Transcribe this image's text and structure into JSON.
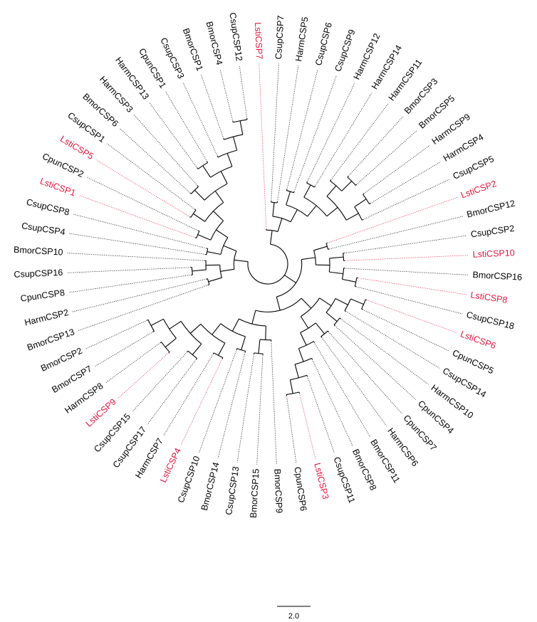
{
  "tree": {
    "highlight_color": "#e3173f",
    "text_color": "#000000",
    "branch_color": "#000000",
    "leaves": [
      {
        "name": "LstiCSP7",
        "hl": true
      },
      {
        "name": "CsupCSP7",
        "hl": false
      },
      {
        "name": "HarmCSP5",
        "hl": false
      },
      {
        "name": "CsupCSP6",
        "hl": false
      },
      {
        "name": "CsupCSP9",
        "hl": false
      },
      {
        "name": "HarmCSP12",
        "hl": false
      },
      {
        "name": "HarmCSP14",
        "hl": false
      },
      {
        "name": "HarmCSP11",
        "hl": false
      },
      {
        "name": "BmorCSP3",
        "hl": false
      },
      {
        "name": "BmorCSP5",
        "hl": false
      },
      {
        "name": "HarmCSP9",
        "hl": false
      },
      {
        "name": "HarmCSP4",
        "hl": false
      },
      {
        "name": "CsupCSP5",
        "hl": false
      },
      {
        "name": "LstiCSP2",
        "hl": true
      },
      {
        "name": "BmorCSP12",
        "hl": false
      },
      {
        "name": "CsupCSP2",
        "hl": false
      },
      {
        "name": "LstiCSP10",
        "hl": true
      },
      {
        "name": "BmorCSP16",
        "hl": false
      },
      {
        "name": "LstiCSP8",
        "hl": true
      },
      {
        "name": "CsupCSP18",
        "hl": false
      },
      {
        "name": "LstiCSP6",
        "hl": true
      },
      {
        "name": "CpunCSP5",
        "hl": false
      },
      {
        "name": "CsupCSP14",
        "hl": false
      },
      {
        "name": "HarmCSP10",
        "hl": false
      },
      {
        "name": "CpunCSP4",
        "hl": false
      },
      {
        "name": "CpunCSP7",
        "hl": false
      },
      {
        "name": "HarmCSP6",
        "hl": false
      },
      {
        "name": "BmorCSP11",
        "hl": false
      },
      {
        "name": "BmorCSP8",
        "hl": false
      },
      {
        "name": "CsupCSP11",
        "hl": false
      },
      {
        "name": "LstiCSP3",
        "hl": true
      },
      {
        "name": "CpunCSP6",
        "hl": false
      },
      {
        "name": "BmorCSP9",
        "hl": false
      },
      {
        "name": "BmorCSP15",
        "hl": false
      },
      {
        "name": "CsupCSP13",
        "hl": false
      },
      {
        "name": "BmorCSP14",
        "hl": false
      },
      {
        "name": "CsupCSP10",
        "hl": false
      },
      {
        "name": "LstiCSP4",
        "hl": true
      },
      {
        "name": "HarmCSP7",
        "hl": false
      },
      {
        "name": "CsupCSP17",
        "hl": false
      },
      {
        "name": "CsupCSP15",
        "hl": false
      },
      {
        "name": "LstiCSP9",
        "hl": true
      },
      {
        "name": "HarmCSP8",
        "hl": false
      },
      {
        "name": "BmorCSP7",
        "hl": false
      },
      {
        "name": "BmorCSP2",
        "hl": false
      },
      {
        "name": "BmorCSP13",
        "hl": false
      },
      {
        "name": "HarmCSP2",
        "hl": false
      },
      {
        "name": "CpunCSP8",
        "hl": false
      },
      {
        "name": "CsupCSP16",
        "hl": false
      },
      {
        "name": "BmorCSP10",
        "hl": false
      },
      {
        "name": "CsupCSP4",
        "hl": false
      },
      {
        "name": "CsupCSP8",
        "hl": false
      },
      {
        "name": "LstiCSP1",
        "hl": true
      },
      {
        "name": "CpunCSP2",
        "hl": false
      },
      {
        "name": "LstiCSP5",
        "hl": true
      },
      {
        "name": "CsupCSP1",
        "hl": false
      },
      {
        "name": "BmorCSP6",
        "hl": false
      },
      {
        "name": "HarmCSP3",
        "hl": false
      },
      {
        "name": "HarmCSP13",
        "hl": false
      },
      {
        "name": "CpunCSP1",
        "hl": false
      },
      {
        "name": "CsupCSP3",
        "hl": false
      },
      {
        "name": "BmorCSP1",
        "hl": false
      },
      {
        "name": "BmorCSP4",
        "hl": false
      },
      {
        "name": "CsupCSP12",
        "hl": false
      }
    ],
    "topology": [
      [
        "LstiCSP7",
        [
          [
            "CsupCSP7",
            "HarmCSP5"
          ],
          [
            [
              "CsupCSP6",
              "CsupCSP9"
            ],
            [
              [
                "HarmCSP12",
                "HarmCSP14"
              ],
              [
                [
                  "HarmCSP11",
                  [
                    "BmorCSP3",
                    "BmorCSP5"
                  ]
                ],
                [
                  [
                    "HarmCSP9",
                    "HarmCSP4"
                  ],
                  "CsupCSP5"
                ]
              ]
            ]
          ]
        ]
      ],
      [
        [
          [
            "LstiCSP2",
            "BmorCSP12"
          ],
          [
            [
              "CsupCSP2",
              "LstiCSP10"
            ],
            [
              "BmorCSP16",
              [
                "LstiCSP8",
                "CsupCSP18"
              ]
            ]
          ]
        ],
        [
          [
            [
              [
                [
                  "LstiCSP6",
                  "CpunCSP5"
                ],
                "CsupCSP14"
              ],
              [
                "HarmCSP10",
                "CpunCSP4"
              ]
            ],
            [
              [
                "CpunCSP7",
                "HarmCSP6"
              ],
              [
                "BmorCSP11",
                [
                  "BmorCSP8",
                  [
                    "CsupCSP11",
                    [
                      "LstiCSP3",
                      "CpunCSP6"
                    ]
                  ]
                ]
              ]
            ]
          ],
          [
            [
              "BmorCSP9",
              [
                "BmorCSP15",
                "CsupCSP13"
              ]
            ],
            [
              [
                "BmorCSP14",
                "CsupCSP10"
              ],
              [
                [
                  "LstiCSP4",
                  "HarmCSP7"
                ],
                [
                  [
                    "CsupCSP17",
                    "CsupCSP15"
                  ],
                  [
                    [
                      "LstiCSP9",
                      "HarmCSP8"
                    ],
                    [
                      "BmorCSP7",
                      "BmorCSP2"
                    ]
                  ]
                ]
              ]
            ]
          ]
        ]
      ],
      [
        [
          [
            "BmorCSP13",
            "HarmCSP2"
          ],
          [
            [
              "CpunCSP8",
              "CsupCSP16"
            ],
            "BmorCSP10"
          ]
        ],
        [
          [
            "CsupCSP4",
            "CsupCSP8"
          ],
          [
            [
              "LstiCSP1",
              "CpunCSP2"
            ],
            [
              [
                "LstiCSP5",
                "CsupCSP1"
              ],
              [
                [
                  "BmorCSP6",
                  "HarmCSP3"
                ],
                [
                  [
                    "HarmCSP13",
                    "CpunCSP1"
                  ],
                  [
                    "CsupCSP3",
                    [
                      "BmorCSP1",
                      [
                        "BmorCSP4",
                        "CsupCSP12"
                      ]
                    ]
                  ]
                ]
              ]
            ]
          ]
        ]
      ]
    ]
  },
  "scale_bar": {
    "label": "2.0"
  }
}
